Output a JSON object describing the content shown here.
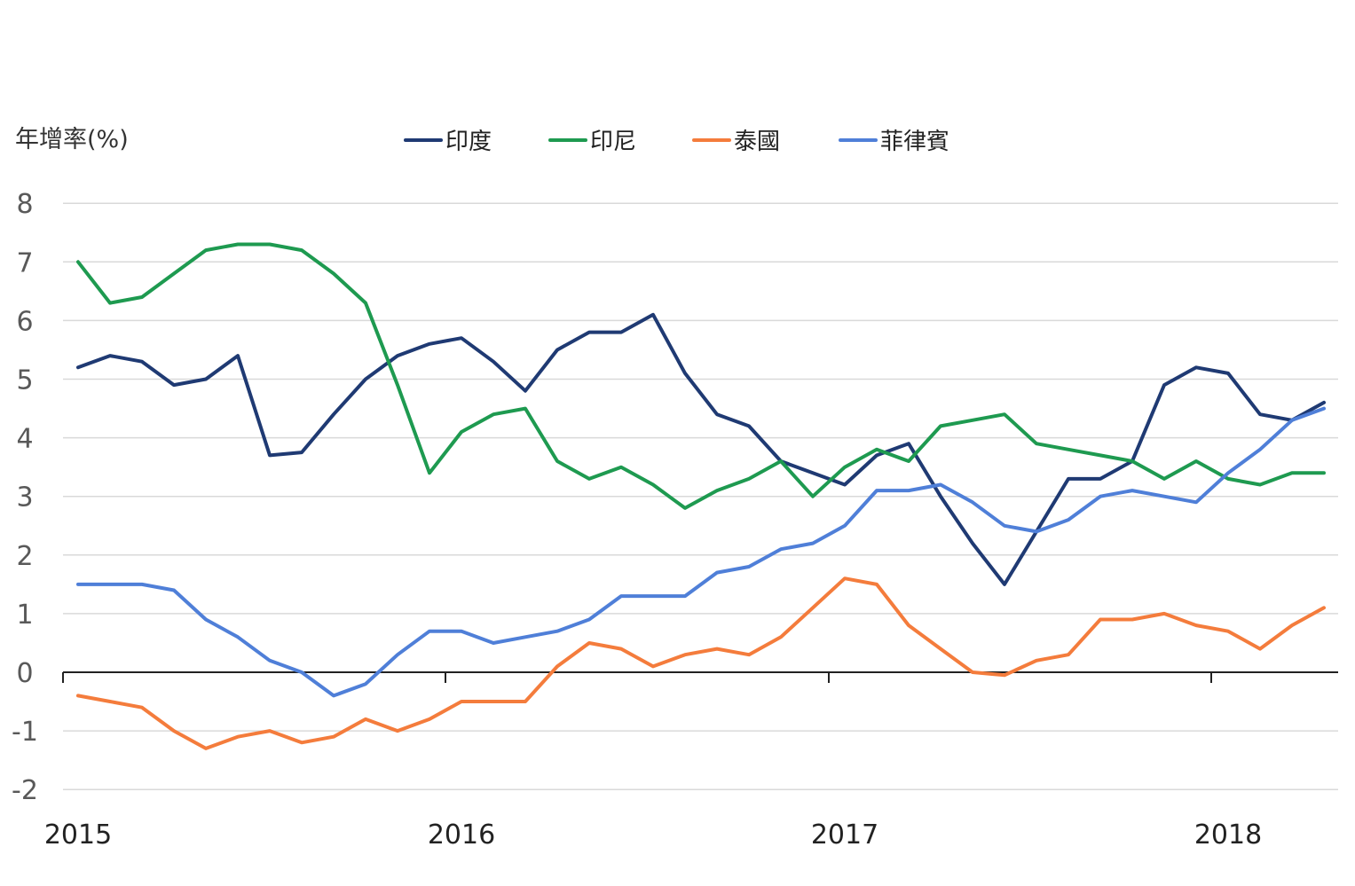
{
  "chart_data": {
    "type": "line",
    "title": "",
    "ylabel": "年增率(%)",
    "xlabel": "",
    "ylim": [
      -2,
      8
    ],
    "yticks": [
      8,
      7,
      6,
      5,
      4,
      3,
      2,
      1,
      0,
      -1,
      -2
    ],
    "ytick_labels": [
      "8",
      "7",
      "6",
      "5",
      "4",
      "3",
      "2",
      "1",
      "0",
      "-1",
      "-2"
    ],
    "xtick_labels": [
      "2015",
      "2016",
      "2017",
      "2018"
    ],
    "grid": true,
    "legend_position": "top",
    "x": [
      "2015-01",
      "2015-02",
      "2015-03",
      "2015-04",
      "2015-05",
      "2015-06",
      "2015-07",
      "2015-08",
      "2015-09",
      "2015-10",
      "2015-11",
      "2015-12",
      "2016-01",
      "2016-02",
      "2016-03",
      "2016-04",
      "2016-05",
      "2016-06",
      "2016-07",
      "2016-08",
      "2016-09",
      "2016-10",
      "2016-11",
      "2016-12",
      "2017-01",
      "2017-02",
      "2017-03",
      "2017-04",
      "2017-05",
      "2017-06",
      "2017-07",
      "2017-08",
      "2017-09",
      "2017-10",
      "2017-11",
      "2017-12",
      "2018-01",
      "2018-02",
      "2018-03",
      "2018-04"
    ],
    "series": [
      {
        "name": "印度",
        "color": "#1f3a73",
        "values": [
          5.2,
          5.4,
          5.3,
          4.9,
          5.0,
          5.4,
          3.7,
          3.75,
          4.4,
          5.0,
          5.4,
          5.6,
          5.7,
          5.3,
          4.8,
          5.5,
          5.8,
          5.8,
          6.1,
          5.1,
          4.4,
          4.2,
          3.6,
          3.4,
          3.2,
          3.7,
          3.9,
          3.0,
          2.2,
          1.5,
          2.4,
          3.3,
          3.3,
          3.6,
          4.9,
          5.2,
          5.1,
          4.4,
          4.3,
          4.6
        ]
      },
      {
        "name": "印尼",
        "color": "#1e9a50",
        "values": [
          7.0,
          6.3,
          6.4,
          6.8,
          7.2,
          7.3,
          7.3,
          7.2,
          6.8,
          6.3,
          4.9,
          3.4,
          4.1,
          4.4,
          4.5,
          3.6,
          3.3,
          3.5,
          3.2,
          2.8,
          3.1,
          3.3,
          3.6,
          3.0,
          3.5,
          3.8,
          3.6,
          4.2,
          4.3,
          4.4,
          3.9,
          3.8,
          3.7,
          3.6,
          3.3,
          3.6,
          3.3,
          3.2,
          3.4,
          3.4
        ]
      },
      {
        "name": "泰國",
        "color": "#f47c3c",
        "values": [
          -0.4,
          -0.5,
          -0.6,
          -1.0,
          -1.3,
          -1.1,
          -1.0,
          -1.2,
          -1.1,
          -0.8,
          -1.0,
          -0.8,
          -0.5,
          -0.5,
          -0.5,
          0.1,
          0.5,
          0.4,
          0.1,
          0.3,
          0.4,
          0.3,
          0.6,
          1.1,
          1.6,
          1.5,
          0.8,
          0.4,
          0.0,
          -0.05,
          0.2,
          0.3,
          0.9,
          0.9,
          1.0,
          0.8,
          0.7,
          0.4,
          0.8,
          1.1
        ]
      },
      {
        "name": "菲律賓",
        "color": "#4f7fd8",
        "values": [
          1.5,
          1.5,
          1.5,
          1.4,
          0.9,
          0.6,
          0.2,
          0.0,
          -0.4,
          -0.2,
          0.3,
          0.7,
          0.7,
          0.5,
          0.6,
          0.7,
          0.9,
          1.3,
          1.3,
          1.3,
          1.7,
          1.8,
          2.1,
          2.2,
          2.5,
          3.1,
          3.1,
          3.2,
          2.9,
          2.5,
          2.4,
          2.6,
          3.0,
          3.1,
          3.0,
          2.9,
          3.4,
          3.8,
          4.3,
          4.5
        ]
      }
    ]
  }
}
